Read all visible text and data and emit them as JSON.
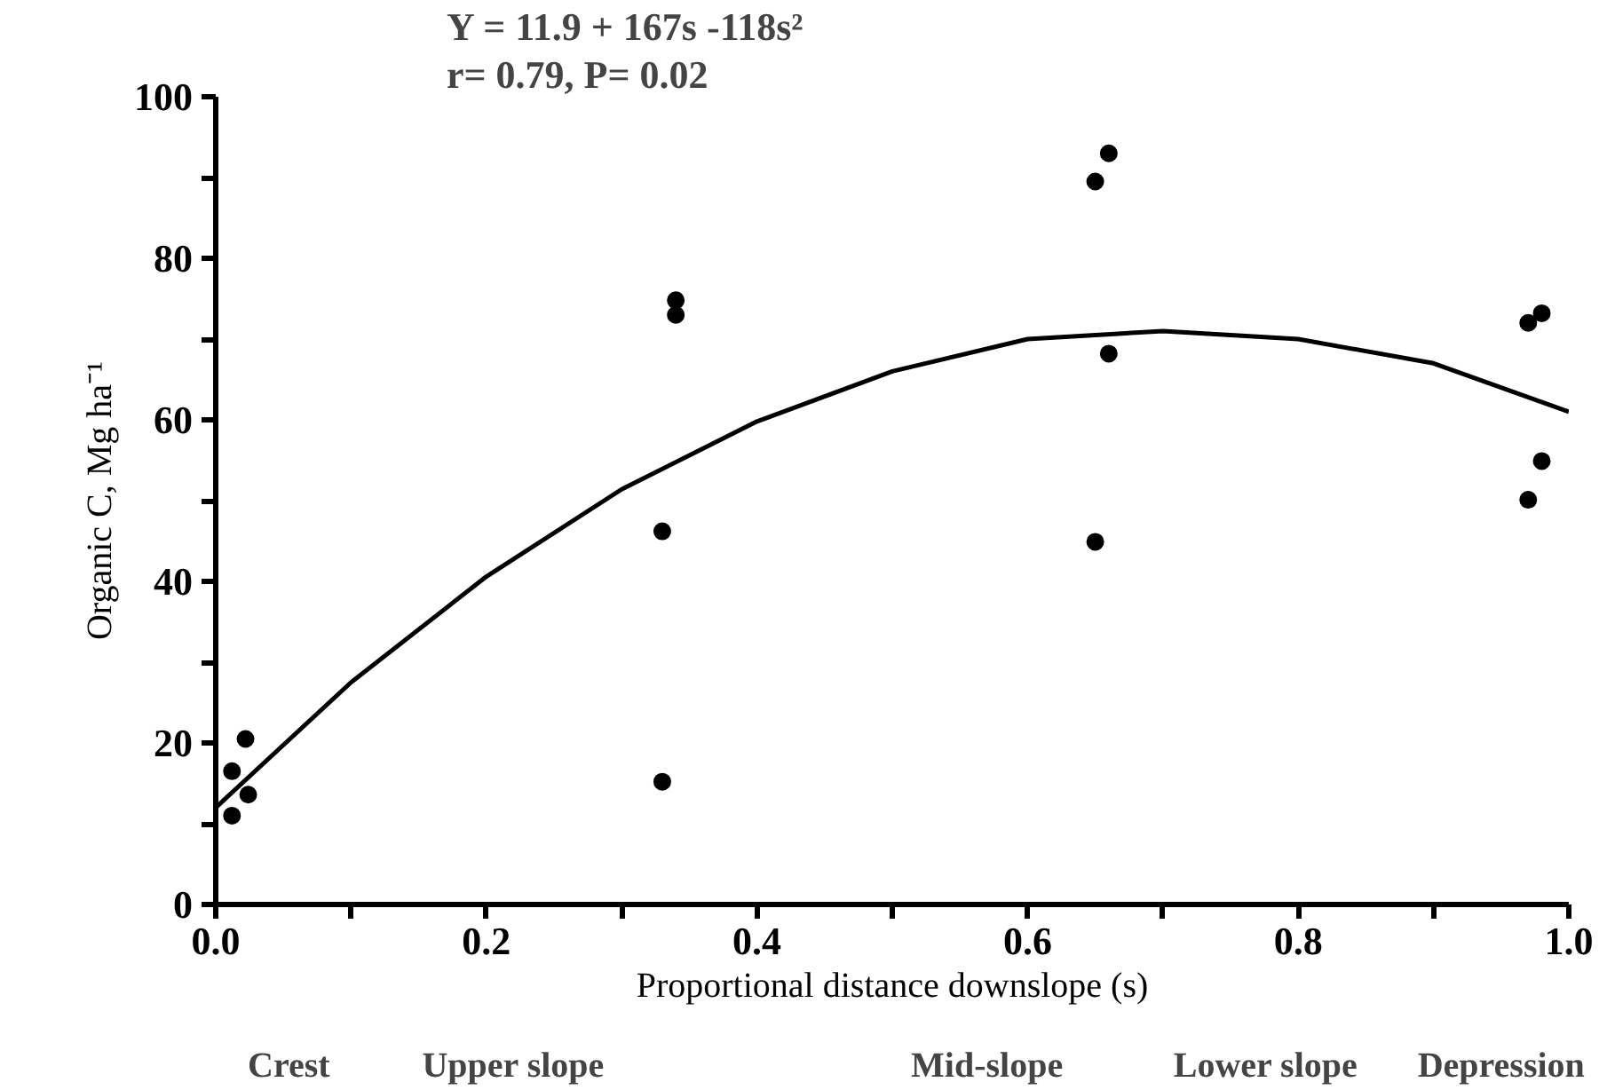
{
  "chart_data": {
    "type": "scatter",
    "title": "Y = 11.9 + 167s -118s²",
    "subtitle": "r= 0.79, P= 0.02",
    "xlabel": "Proportional distance downslope (s)",
    "ylabel": "Organic C, Mg ha⁻¹",
    "annotations": [
      "Crest",
      "Upper slope",
      "Mid-slope",
      "Lower slope",
      "Depression"
    ],
    "series": [
      {
        "color": "#000000",
        "marker": "circle",
        "x": [
          0.012,
          0.022,
          0.024,
          0.012,
          0.33,
          0.33,
          0.34,
          0.34,
          0.66,
          0.65,
          0.66,
          0.65,
          0.98,
          0.97,
          0.98,
          0.97
        ],
        "values": [
          16.5,
          20.5,
          13.6,
          11,
          46.2,
          15.2,
          74.8,
          73,
          93,
          89.5,
          68.2,
          44.9,
          73.2,
          72,
          54.9,
          50.1
        ]
      },
      {
        "type": "line",
        "color": "#000000",
        "x": [
          0,
          0.1,
          0.2,
          0.3,
          0.4,
          0.5,
          0.6,
          0.7,
          0.8,
          0.9,
          1.0
        ],
        "values": [
          12,
          27.5,
          40.6,
          51.4,
          59.8,
          66,
          70,
          71,
          70,
          67,
          61
        ]
      }
    ],
    "xlim": [
      0,
      1.0
    ],
    "ylim": [
      0,
      100
    ],
    "xticks": [
      {
        "value": 0,
        "label": "0.0"
      },
      {
        "value": 0.1,
        "label": null
      },
      0.2,
      {
        "value": 0.3,
        "label": null
      },
      0.4,
      {
        "value": 0.5,
        "label": null
      },
      0.6,
      {
        "value": 0.7,
        "label": null
      },
      0.8,
      {
        "value": 0.9,
        "label": null
      },
      {
        "value": 1,
        "label": "1.0"
      }
    ],
    "yticks": [
      0,
      {
        "value": 10,
        "label": null
      },
      20,
      {
        "value": 30,
        "label": null
      },
      40,
      {
        "value": 50,
        "label": null
      },
      60,
      {
        "value": 70,
        "label": null
      },
      80,
      {
        "value": 90,
        "label": null
      },
      100
    ],
    "grid": false,
    "line_style": "solid"
  }
}
